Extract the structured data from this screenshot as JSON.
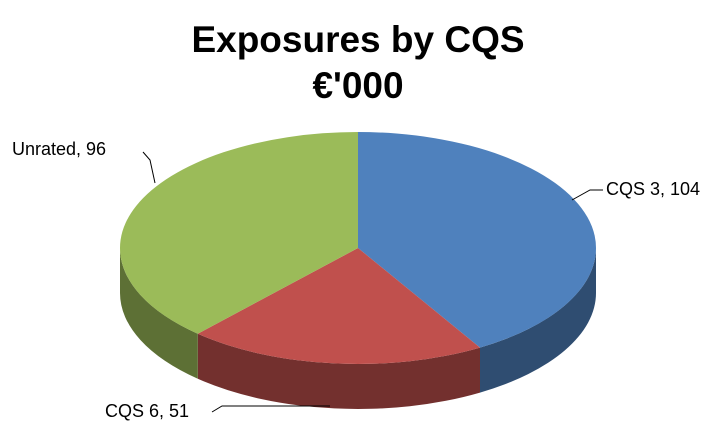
{
  "chart_data": {
    "type": "pie",
    "title": "Exposures by CQS",
    "subtitle": "€'000",
    "categories": [
      "CQS 3",
      "CQS 6",
      "Unrated"
    ],
    "values": [
      104,
      51,
      96
    ],
    "value_labels": [
      "CQS 3, 104",
      "CQS 6, 51",
      "Unrated, 96"
    ],
    "colors": [
      "#4f81bd",
      "#c0504d",
      "#9bbb59"
    ]
  }
}
